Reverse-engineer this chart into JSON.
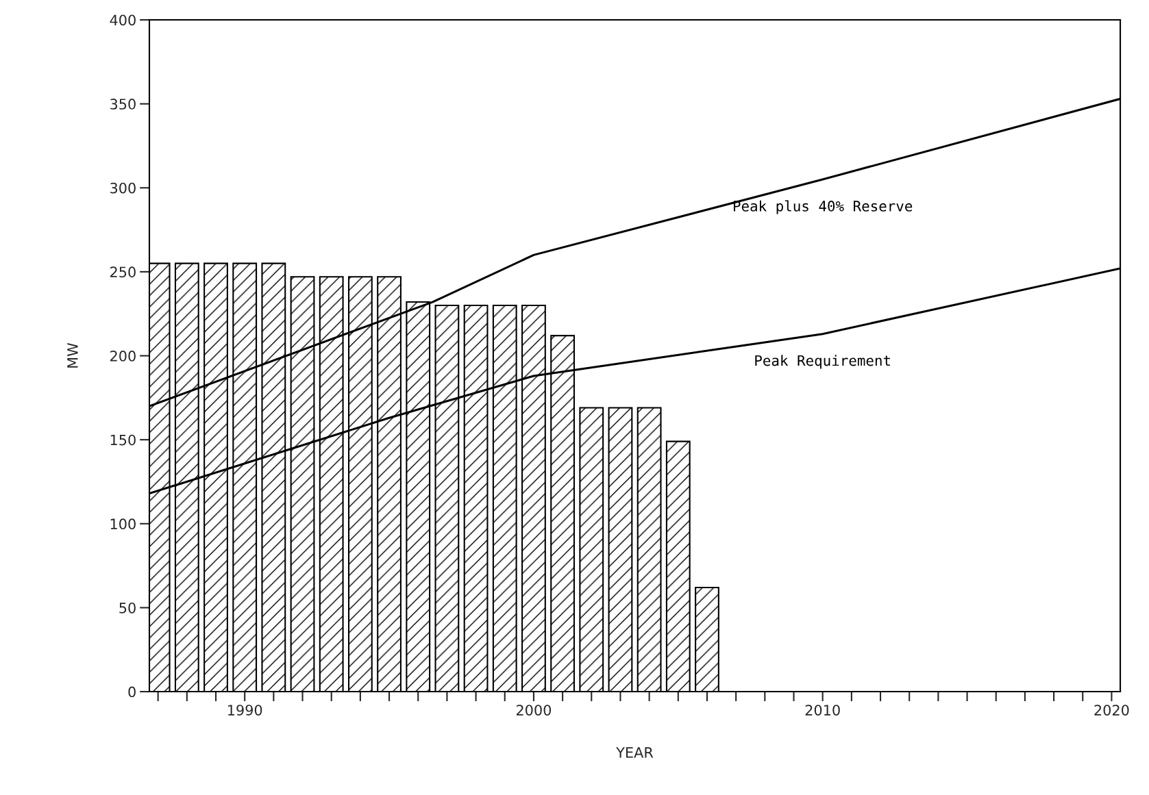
{
  "chart_data": {
    "type": "bar",
    "xlabel": "YEAR",
    "ylabel": "MW",
    "x": [
      1987,
      1988,
      1989,
      1990,
      1991,
      1992,
      1993,
      1994,
      1995,
      1996,
      1997,
      1998,
      1999,
      2000,
      2001,
      2002,
      2003,
      2004,
      2005,
      2006
    ],
    "series": [
      {
        "color": "#000000",
        "values": [
          255,
          255,
          255,
          255,
          255,
          247,
          247,
          247,
          247,
          232,
          230,
          230,
          230,
          230,
          212,
          169,
          169,
          169,
          149,
          62
        ]
      },
      {
        "type": "line",
        "name": "Peak plus 40% Reserve",
        "color": "#000000",
        "x": [
          1986.7,
          1996.5,
          2000,
          2010,
          2020.3
        ],
        "values": [
          170,
          232,
          260,
          305,
          353
        ]
      },
      {
        "type": "line",
        "name": "Peak Requirement",
        "color": "#000000",
        "x": [
          1986.7,
          1995,
          2000,
          2010,
          2020.3
        ],
        "values": [
          118,
          163,
          188,
          213,
          252
        ]
      }
    ],
    "xlim": [
      1986.7,
      2020.3
    ],
    "xticks": [
      {
        "value": 1987,
        "label": null
      },
      {
        "value": 1988,
        "label": null
      },
      {
        "value": 1989,
        "label": null
      },
      1990,
      {
        "value": 1991,
        "label": null
      },
      {
        "value": 1992,
        "label": null
      },
      {
        "value": 1993,
        "label": null
      },
      {
        "value": 1994,
        "label": null
      },
      {
        "value": 1995,
        "label": null
      },
      {
        "value": 1996,
        "label": null
      },
      {
        "value": 1997,
        "label": null
      },
      {
        "value": 1998,
        "label": null
      },
      {
        "value": 1999,
        "label": null
      },
      2000,
      {
        "value": 2001,
        "label": null
      },
      {
        "value": 2002,
        "label": null
      },
      {
        "value": 2003,
        "label": null
      },
      {
        "value": 2004,
        "label": null
      },
      {
        "value": 2005,
        "label": null
      },
      {
        "value": 2006,
        "label": null
      },
      {
        "value": 2007,
        "label": null
      },
      {
        "value": 2008,
        "label": null
      },
      {
        "value": 2009,
        "label": null
      },
      2010,
      {
        "value": 2011,
        "label": null
      },
      {
        "value": 2012,
        "label": null
      },
      {
        "value": 2013,
        "label": null
      },
      {
        "value": 2014,
        "label": null
      },
      {
        "value": 2015,
        "label": null
      },
      {
        "value": 2016,
        "label": null
      },
      {
        "value": 2017,
        "label": null
      },
      {
        "value": 2018,
        "label": null
      },
      {
        "value": 2019,
        "label": null
      },
      2020
    ],
    "ylim": [
      0,
      400
    ],
    "yticks": [
      0,
      50,
      100,
      150,
      200,
      250,
      300,
      350,
      400
    ],
    "grid": false,
    "legend": false
  }
}
